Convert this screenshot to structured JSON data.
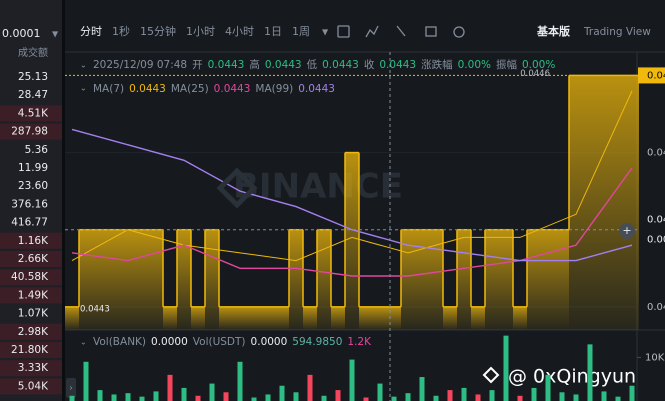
{
  "book": {
    "precision": "0.0001",
    "header": "成交额",
    "rows": [
      {
        "amount": "25.13",
        "highlight": false
      },
      {
        "amount": "28.47",
        "highlight": false
      },
      {
        "amount": "4.51K",
        "highlight": true
      },
      {
        "amount": "287.98",
        "highlight": true
      },
      {
        "amount": "5.36",
        "highlight": false
      },
      {
        "amount": "11.99",
        "highlight": false
      },
      {
        "amount": "23.60",
        "highlight": false
      },
      {
        "amount": "376.16",
        "highlight": false
      },
      {
        "amount": "416.77",
        "highlight": false
      },
      {
        "amount": "1.16K",
        "highlight": true
      },
      {
        "amount": "2.66K",
        "highlight": true
      },
      {
        "amount": "40.58K",
        "highlight": true
      },
      {
        "amount": "1.49K",
        "highlight": true
      },
      {
        "amount": "1.07K",
        "highlight": false
      },
      {
        "amount": "2.98K",
        "highlight": true
      },
      {
        "amount": "21.80K",
        "highlight": true
      },
      {
        "amount": "3.33K",
        "highlight": true
      },
      {
        "amount": "5.04K",
        "highlight": true
      }
    ]
  },
  "toolbar": {
    "intervals": [
      "分时",
      "1秒",
      "15分钟",
      "1小时",
      "4小时",
      "1日",
      "1周"
    ],
    "active": 0,
    "views": [
      "基本版",
      "Trading View"
    ]
  },
  "info": {
    "time": "2025/12/09 07:48",
    "fields": [
      {
        "label": "开",
        "value": "0.0443"
      },
      {
        "label": "高",
        "value": "0.0443"
      },
      {
        "label": "低",
        "value": "0.0443"
      },
      {
        "label": "收",
        "value": "0.0443"
      },
      {
        "label": "涨跌幅",
        "value": "0.00%"
      },
      {
        "label": "振幅",
        "value": "0.00%"
      }
    ]
  },
  "ma_legend": [
    {
      "label": "MA(7)",
      "value": "0.0443",
      "color": "#f0b90b"
    },
    {
      "label": "MA(25)",
      "value": "0.0443",
      "color": "#e0479e"
    },
    {
      "label": "MA(99)",
      "value": "0.0443",
      "color": "#a47ff0"
    }
  ],
  "watermark": "BINANCE",
  "chart_data": {
    "type": "step-area",
    "color": "#f0b90b",
    "ylim": [
      0.04427,
      0.04462
    ],
    "yticks": [
      {
        "value": 0.0445,
        "label": "0.04"
      },
      {
        "value": 0.0443,
        "label": "0.04"
      }
    ],
    "values": [
      0.0443,
      0.0444,
      0.0444,
      0.0444,
      0.0444,
      0.0444,
      0.0444,
      0.0443,
      0.0444,
      0.0443,
      0.0444,
      0.0443,
      0.0443,
      0.0443,
      0.0443,
      0.0443,
      0.0444,
      0.0443,
      0.0444,
      0.0443,
      0.0445,
      0.0443,
      0.0443,
      0.0443,
      0.0444,
      0.0444,
      0.0444,
      0.0443,
      0.0444,
      0.0443,
      0.0444,
      0.0444,
      0.0443,
      0.0444,
      0.0444,
      0.0444,
      0.0446,
      0.0446,
      0.0446,
      0.0446,
      0.0446
    ],
    "high_label": "0.0446",
    "low_label": "0.0443",
    "last_price": {
      "value": 0.0446,
      "label": "0.04"
    },
    "crosshair": {
      "value": 0.0444,
      "label": "0.04",
      "countdown": "0.00"
    },
    "ma_lines": [
      {
        "color": "#f0b90b",
        "values": [
          0.04436,
          0.0444,
          0.04438,
          0.04437,
          0.04436,
          0.04439,
          0.04437,
          0.04439,
          0.04439,
          0.04442,
          0.04458
        ]
      },
      {
        "color": "#e0479e",
        "values": [
          0.04437,
          0.04436,
          0.04438,
          0.04435,
          0.04435,
          0.04434,
          0.04434,
          0.04435,
          0.04436,
          0.04438,
          0.04448
        ]
      },
      {
        "color": "#a47ff0",
        "values": [
          0.04453,
          0.04451,
          0.04449,
          0.04445,
          0.04443,
          0.0444,
          0.04438,
          0.04437,
          0.04436,
          0.04436,
          0.04438
        ]
      }
    ],
    "volume": {
      "legend": [
        {
          "label": "Vol(BANK)",
          "value": "0.0000"
        },
        {
          "label": "Vol(USDT)",
          "value": "0.0000"
        }
      ],
      "ma_values": [
        {
          "value": "594.9850",
          "color": "#5fb3a5"
        },
        {
          "value": "1.2K",
          "color": "#e0479e"
        }
      ],
      "ylim": [
        0,
        14000
      ],
      "yticks": [
        {
          "value": 10000,
          "label": "10K"
        }
      ],
      "up_color": "#2ebd85",
      "down_color": "#f6465d",
      "values": [
        1200,
        9000,
        2500,
        1500,
        1800,
        1000,
        2200,
        6000,
        3000,
        1200,
        4000,
        2000,
        9000,
        800,
        1500,
        3500,
        2000,
        6000,
        1200,
        2500,
        9500,
        800,
        4000,
        1000,
        1800,
        5500,
        1200,
        2500,
        3000,
        1500,
        2500,
        15000,
        1200,
        3000,
        6000,
        2000,
        1500,
        13000,
        2200,
        1000,
        3500
      ]
    }
  },
  "credit": "@ 0xQingyun"
}
